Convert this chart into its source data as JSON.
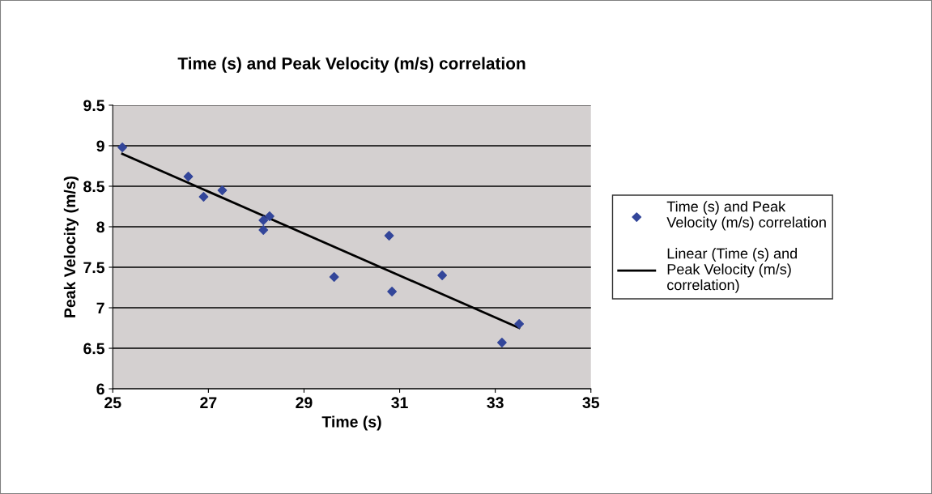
{
  "chart_data": {
    "type": "scatter",
    "title": "Time (s) and Peak Velocity (m/s) correlation",
    "xlabel": "Time (s)",
    "ylabel": "Peak Velocity (m/s)",
    "xlim": [
      25,
      35
    ],
    "xticks": [
      25,
      27,
      29,
      31,
      33,
      35
    ],
    "ylim": [
      6,
      9.5
    ],
    "yticks": [
      6,
      6.5,
      7,
      7.5,
      8,
      8.5,
      9,
      9.5
    ],
    "grid": "y",
    "legend": "right",
    "series": [
      {
        "name": "Time (s) and Peak\nVelocity (m/s) correlation",
        "marker": "diamond",
        "color": "#33469a",
        "x": [
          25.2,
          26.58,
          26.9,
          27.29,
          28.15,
          28.28,
          28.15,
          29.63,
          30.78,
          30.84,
          31.89,
          33.14,
          33.5
        ],
        "values": [
          8.98,
          8.62,
          8.37,
          8.45,
          8.08,
          8.13,
          7.96,
          7.38,
          7.89,
          7.2,
          7.4,
          6.57,
          6.8
        ]
      },
      {
        "name": "Linear (Time (s) and\nPeak Velocity (m/s)\ncorrelation)",
        "type": "line",
        "color": "#000000",
        "line_style": "solid",
        "x": [
          25.2,
          33.5
        ],
        "values": [
          8.9,
          6.75
        ]
      }
    ]
  }
}
